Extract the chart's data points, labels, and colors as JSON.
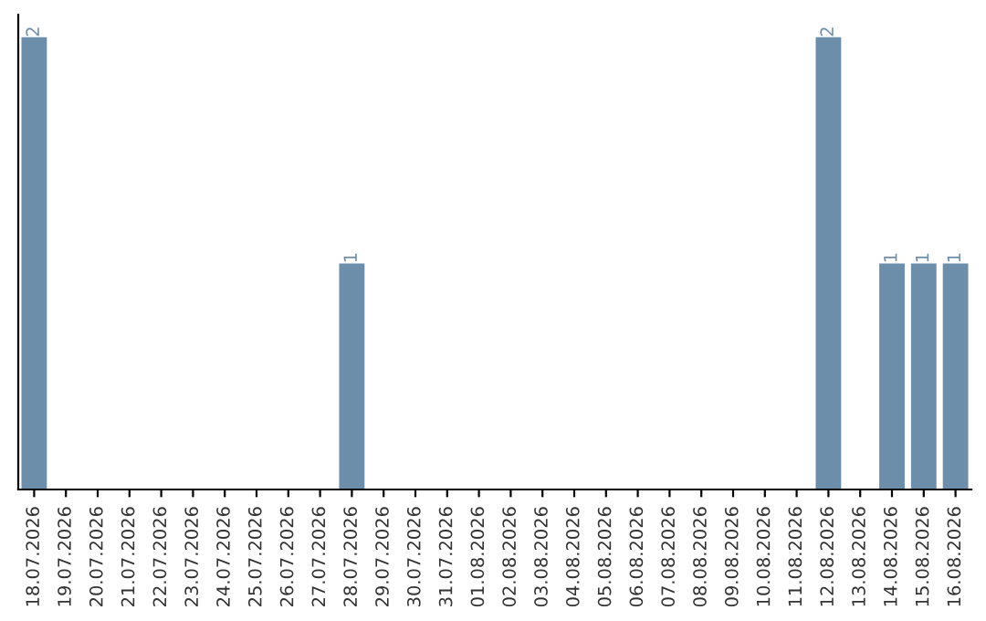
{
  "chart_data": {
    "type": "bar",
    "categories": [
      "18.07.2026",
      "19.07.2026",
      "20.07.2026",
      "21.07.2026",
      "22.07.2026",
      "23.07.2026",
      "24.07.2026",
      "25.07.2026",
      "26.07.2026",
      "27.07.2026",
      "28.07.2026",
      "29.07.2026",
      "30.07.2026",
      "31.07.2026",
      "01.08.2026",
      "02.08.2026",
      "03.08.2026",
      "04.08.2026",
      "05.08.2026",
      "06.08.2026",
      "07.08.2026",
      "08.08.2026",
      "09.08.2026",
      "10.08.2026",
      "11.08.2026",
      "12.08.2026",
      "13.08.2026",
      "14.08.2026",
      "15.08.2026",
      "16.08.2026"
    ],
    "values": [
      2,
      0,
      0,
      0,
      0,
      0,
      0,
      0,
      0,
      0,
      1,
      0,
      0,
      0,
      0,
      0,
      0,
      0,
      0,
      0,
      0,
      0,
      0,
      0,
      0,
      2,
      0,
      1,
      1,
      1
    ],
    "value_labels": [
      "2",
      null,
      null,
      null,
      null,
      null,
      null,
      null,
      null,
      null,
      "1",
      null,
      null,
      null,
      null,
      null,
      null,
      null,
      null,
      null,
      null,
      null,
      null,
      null,
      null,
      "2",
      null,
      "1",
      "1",
      "1"
    ],
    "color": "#6d8eab",
    "tick_labels": "x"
  }
}
